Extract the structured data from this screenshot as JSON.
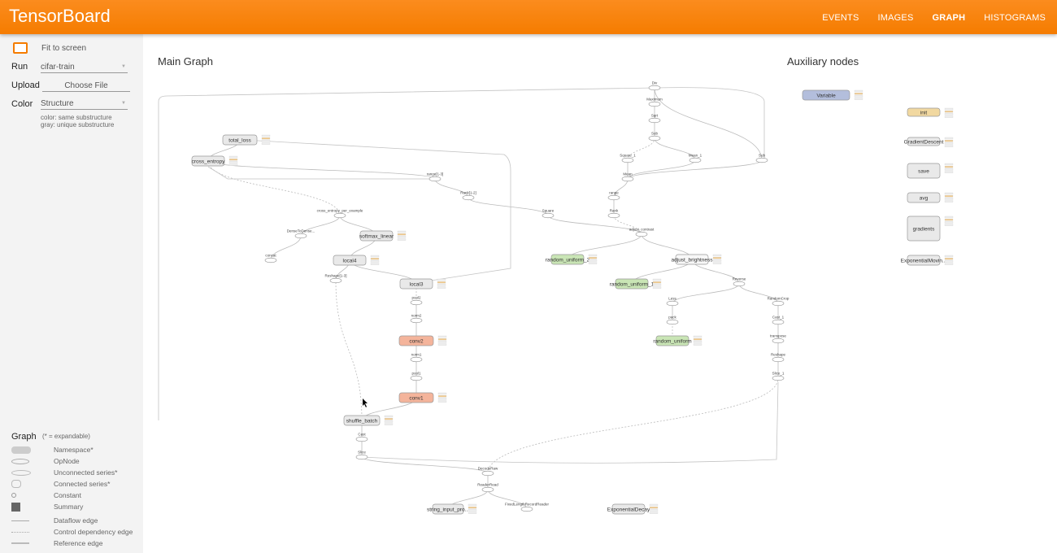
{
  "header": {
    "title": "TensorBoard",
    "nav": [
      {
        "label": "EVENTS",
        "active": false
      },
      {
        "label": "IMAGES",
        "active": false
      },
      {
        "label": "GRAPH",
        "active": true
      },
      {
        "label": "HISTOGRAMS",
        "active": false
      }
    ],
    "accent": "#f57c00"
  },
  "sidebar": {
    "fit_label": "Fit to screen",
    "run": {
      "label": "Run",
      "value": "cifar-train"
    },
    "upload": {
      "label": "Upload",
      "button": "Choose File"
    },
    "color": {
      "label": "Color",
      "value": "Structure",
      "note1": "color: same substructure",
      "note2": "gray: unique substructure"
    },
    "legend": {
      "title": "Graph",
      "subtitle": "(* = expandable)",
      "items": [
        {
          "label": "Namespace*",
          "icon": "namespace-icon"
        },
        {
          "label": "OpNode",
          "icon": "opnode-icon"
        },
        {
          "label": "Unconnected series*",
          "icon": "unconnected-series-icon"
        },
        {
          "label": "Connected series*",
          "icon": "connected-series-icon"
        },
        {
          "label": "Constant",
          "icon": "constant-icon"
        },
        {
          "label": "Summary",
          "icon": "summary-icon"
        },
        {
          "label": "Dataflow edge",
          "icon": "dataflow-edge-icon"
        },
        {
          "label": "Control dependency edge",
          "icon": "control-edge-icon"
        },
        {
          "label": "Reference edge",
          "icon": "reference-edge-icon"
        }
      ]
    }
  },
  "main_graph": {
    "title": "Main Graph",
    "colors": {
      "gray": "#e9e9e9",
      "orange": "#f4b49b",
      "green": "#c9e5b5",
      "white": "#f7f7f7",
      "blue": "#b3bedc",
      "yellow": "#f1d8a0"
    },
    "namespaces": [
      {
        "label": "total_loss",
        "color": "gray"
      },
      {
        "label": "cross_entropy",
        "color": "gray"
      },
      {
        "label": "softmax_linear",
        "color": "gray"
      },
      {
        "label": "local4",
        "color": "gray"
      },
      {
        "label": "local3",
        "color": "gray"
      },
      {
        "label": "conv2",
        "color": "orange"
      },
      {
        "label": "conv1",
        "color": "orange"
      },
      {
        "label": "shuffle_batch",
        "color": "gray"
      },
      {
        "label": "random_uniform_2",
        "color": "green"
      },
      {
        "label": "random_uniform_1",
        "color": "green"
      },
      {
        "label": "random_uniform",
        "color": "green"
      },
      {
        "label": "adjust_brightness",
        "color": "white"
      },
      {
        "label": "string_input_pro...",
        "color": "gray"
      },
      {
        "label": "ExponentialDecay",
        "color": "gray"
      }
    ],
    "ops": [
      "Div",
      "Maximum",
      "Sqrt",
      "Sub",
      "Square_1",
      "Mean_1",
      "Sub",
      "Mean",
      "range",
      "Rank",
      "Square",
      "adjust_contrast",
      "range[1-3]",
      "Rank[1-2]",
      "cross_entropy_per_example",
      "DenseToDense...",
      "concat",
      "Reshape[1-3]",
      "pool2",
      "norm2",
      "norm1",
      "pool1",
      "Cast",
      "Slice",
      "DecodeRaw",
      "ReaderRead",
      "FixedLengthRecordReader",
      "Reverse",
      "Less",
      "pack",
      "RandomCrop",
      "Cast_1",
      "transpose",
      "Reshape",
      "Slice_1"
    ]
  },
  "aux_graph": {
    "title": "Auxiliary nodes",
    "nodes": [
      {
        "label": "Variable",
        "color": "blue"
      },
      {
        "label": "init",
        "color": "yellow"
      },
      {
        "label": "GradientDescent",
        "color": "gray"
      },
      {
        "label": "save",
        "color": "gray"
      },
      {
        "label": "avg",
        "color": "gray"
      },
      {
        "label": "gradients",
        "color": "gray"
      },
      {
        "label": "ExponentialMovin...",
        "color": "gray"
      }
    ]
  }
}
